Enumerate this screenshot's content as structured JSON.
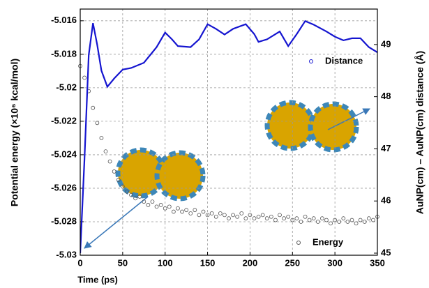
{
  "chart_data": {
    "type": "line",
    "x_label": "Time (ps)",
    "y_label": "Potential energy (×10⁶ kcal/mol)",
    "y2_label": "AuNP(cm) – AuNP(cm) distance (Å)",
    "xlim": [
      0,
      350
    ],
    "xticks": [
      0,
      50,
      100,
      150,
      200,
      250,
      300,
      350
    ],
    "ylim": [
      -5.03,
      -5.0153
    ],
    "yticks": [
      -5.03,
      -5.028,
      -5.026,
      -5.024,
      -5.022,
      -5.02,
      -5.018,
      -5.016
    ],
    "y2lim": [
      44.96,
      49.68
    ],
    "y2ticks": [
      45,
      46,
      47,
      48,
      49
    ],
    "grid": true,
    "series": [
      {
        "name": "Energy",
        "color": "#555555",
        "marker": "circle",
        "x": [
          0,
          5,
          10,
          15,
          20,
          25,
          30,
          35,
          40,
          45,
          50,
          55,
          60,
          65,
          70,
          75,
          80,
          85,
          90,
          95,
          100,
          105,
          110,
          115,
          120,
          125,
          130,
          135,
          140,
          145,
          150,
          155,
          160,
          165,
          170,
          175,
          180,
          185,
          190,
          195,
          200,
          205,
          210,
          215,
          220,
          225,
          230,
          235,
          240,
          245,
          250,
          255,
          260,
          265,
          270,
          275,
          280,
          285,
          290,
          295,
          300,
          305,
          310,
          315,
          320,
          325,
          330,
          335,
          340,
          345,
          350
        ],
        "values": [
          -5.0187,
          -5.0194,
          -5.0202,
          -5.0212,
          -5.0221,
          -5.023,
          -5.0238,
          -5.0244,
          -5.025,
          -5.0255,
          -5.0259,
          -5.0262,
          -5.0264,
          -5.0266,
          -5.0265,
          -5.0268,
          -5.027,
          -5.0268,
          -5.0271,
          -5.027,
          -5.0272,
          -5.0271,
          -5.0274,
          -5.0272,
          -5.0274,
          -5.0273,
          -5.0275,
          -5.0273,
          -5.0276,
          -5.0274,
          -5.0276,
          -5.0275,
          -5.0277,
          -5.0275,
          -5.0276,
          -5.0278,
          -5.0276,
          -5.0277,
          -5.0275,
          -5.0278,
          -5.0276,
          -5.0278,
          -5.0277,
          -5.0276,
          -5.0278,
          -5.0277,
          -5.0279,
          -5.0276,
          -5.0278,
          -5.0277,
          -5.0279,
          -5.0278,
          -5.028,
          -5.0277,
          -5.0279,
          -5.0278,
          -5.028,
          -5.0278,
          -5.0279,
          -5.0281,
          -5.0279,
          -5.028,
          -5.0278,
          -5.028,
          -5.0279,
          -5.0281,
          -5.0279,
          -5.028,
          -5.0278,
          -5.0279,
          -5.0277
        ]
      },
      {
        "name": "Distance",
        "color": "#1515d0",
        "marker": "line",
        "axis": "y2",
        "x": [
          0,
          5,
          10,
          15,
          20,
          25,
          32,
          40,
          50,
          60,
          75,
          90,
          100,
          108,
          115,
          130,
          140,
          150,
          160,
          170,
          180,
          195,
          205,
          210,
          220,
          235,
          245,
          255,
          265,
          275,
          290,
          300,
          310,
          320,
          330,
          340,
          350
        ],
        "values": [
          45.0,
          46.8,
          48.8,
          49.41,
          49.0,
          48.5,
          48.19,
          48.35,
          48.52,
          48.55,
          48.65,
          48.95,
          49.23,
          49.1,
          48.97,
          48.95,
          49.1,
          49.39,
          49.3,
          49.19,
          49.3,
          49.39,
          49.2,
          49.05,
          49.1,
          49.25,
          48.97,
          49.2,
          49.45,
          49.38,
          49.25,
          49.15,
          49.08,
          49.12,
          49.12,
          48.95,
          48.85
        ]
      }
    ]
  }
}
